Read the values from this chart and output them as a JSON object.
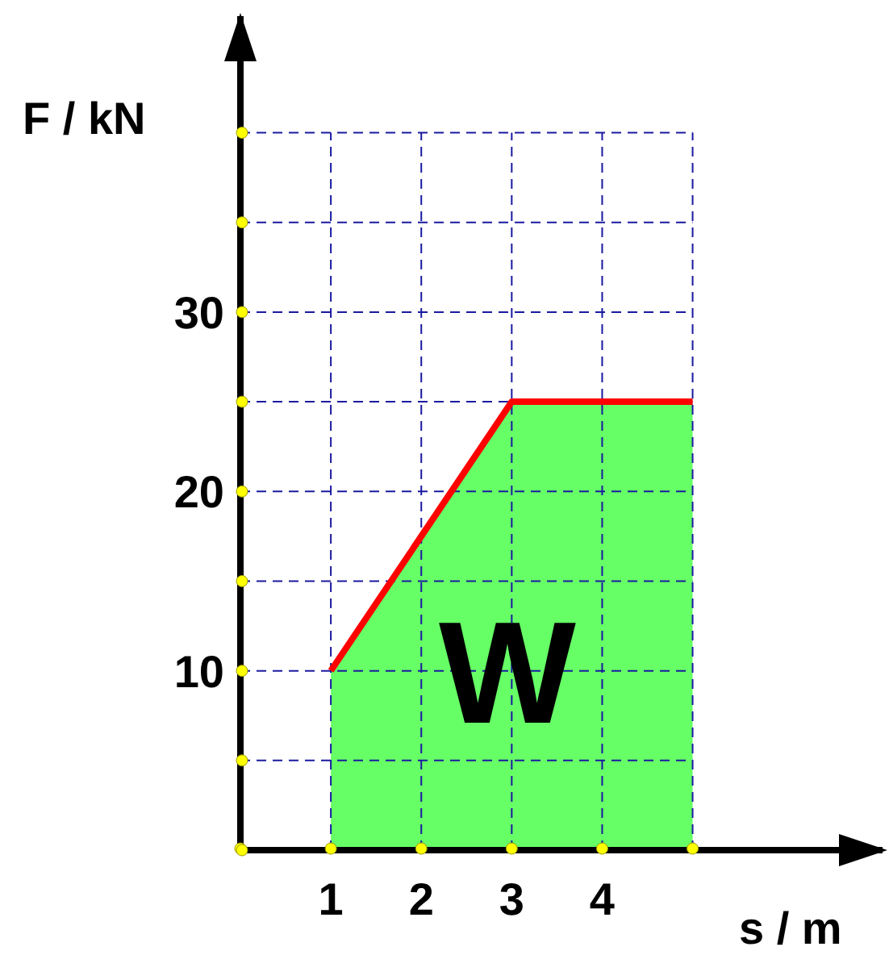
{
  "chart_data": {
    "type": "area",
    "xlabel": "s / m",
    "ylabel": "F / kN",
    "x": [
      1,
      3,
      5
    ],
    "series": [
      {
        "type": "area",
        "color": "#66ff66",
        "values": [
          10,
          25,
          25
        ]
      },
      {
        "type": "line",
        "color": "#ff0000",
        "values": [
          10,
          25,
          25
        ]
      }
    ],
    "xlim": [
      0,
      7.1
    ],
    "ylim": [
      0,
      46.5
    ],
    "xticks": [
      {
        "value": 0,
        "label": null
      },
      1,
      2,
      3,
      4,
      {
        "value": 5,
        "label": null
      }
    ],
    "yticks": [
      {
        "value": 0,
        "label": null
      },
      {
        "value": 5,
        "label": null
      },
      10,
      {
        "value": 15,
        "label": null
      },
      20,
      {
        "value": 25,
        "label": null
      },
      30,
      {
        "value": 35,
        "label": null
      },
      {
        "value": 40,
        "label": null
      }
    ],
    "grid": true,
    "marker": "none",
    "line_style": "solid",
    "annotations": [
      "W"
    ]
  }
}
